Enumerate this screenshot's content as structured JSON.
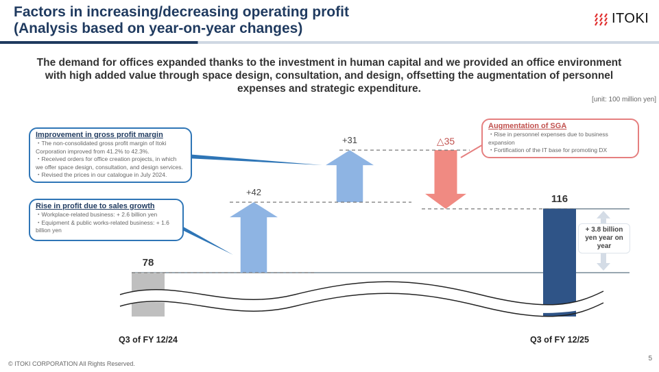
{
  "header": {
    "title_line1": "Factors in increasing/decreasing operating profit",
    "title_line2": "(Analysis based on year-on-year changes)",
    "logo": "ITOKI"
  },
  "headline": "The demand for offices expanded thanks to the investment in human capital and we provided an office environment with high added value through space design, consultation, and design, offsetting the augmentation of personnel expenses and strategic expenditure.",
  "unit": "[unit: 100 million yen]",
  "callouts": {
    "gross": {
      "title": "Improvement in gross profit margin",
      "lines": [
        "・The non-consolidated gross profit margin of Itoki Corporation improved from 41.2% to 42.3%.",
        "・Received orders for office creation projects, in which we offer space design, consultation, and design services.",
        "・Revised the prices in our catalogue in July 2024."
      ]
    },
    "sales": {
      "title": "Rise in profit due to sales growth",
      "lines": [
        "・Workplace-related business: + 2.6 billion yen",
        "・Equipment & public works-related business: + 1.6 billion yen"
      ]
    },
    "sga": {
      "title": "Augmentation of SGA",
      "lines": [
        "・Rise in personnel expenses due to business expansion",
        "・Fortification of the IT base for promoting DX"
      ]
    }
  },
  "yoy_note": "+ 3.8 billion yen year on year",
  "chart_data": {
    "type": "bar",
    "subtype": "waterfall",
    "categories": [
      "Q3 of FY 12/24",
      "Sales growth",
      "Gross profit margin",
      "SGA",
      "Q3 of FY 12/25"
    ],
    "values": [
      78,
      42,
      31,
      -35,
      116
    ],
    "labels": [
      "78",
      "+42",
      "+31",
      "△35",
      "116"
    ],
    "axis_labels": [
      "Q3 of FY 12/24",
      "Q3 of FY 12/25"
    ],
    "colors": {
      "base": "#bfbfbf",
      "increase": "#8eb4e3",
      "decrease": "#f08a82",
      "end": "#2f5487"
    }
  },
  "footer": "© ITOKI CORPORATION All Rights Reserved.",
  "page_number": "5"
}
